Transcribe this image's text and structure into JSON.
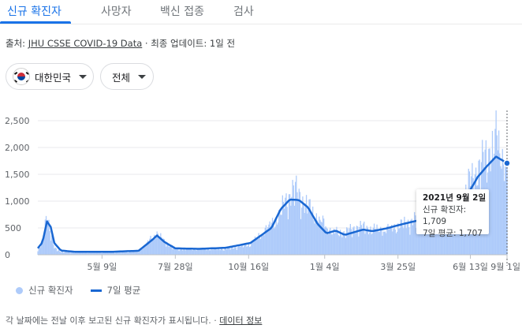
{
  "tabs": [
    {
      "label": "신규 확진자",
      "active": true
    },
    {
      "label": "사망자",
      "active": false
    },
    {
      "label": "백신 접종",
      "active": false
    },
    {
      "label": "검사",
      "active": false
    }
  ],
  "source": {
    "prefix": "출처: ",
    "link": "JHU CSSE COVID-19 Data",
    "suffix": " · 최종 업데이트: 1일 전"
  },
  "filters": {
    "region": "대한민국",
    "scope": "전체",
    "region_flag": "south-korea-flag-icon"
  },
  "legend": {
    "bars": "신규 확진자",
    "line": "7일 평균"
  },
  "tooltip": {
    "date": "2021년 9월 2일",
    "new_cases": "신규 확진자: 1,709",
    "avg": "7일 평균: 1,707"
  },
  "footnote": {
    "text": "각 날짜에는 전날 이후 보고된 신규 확진자가 표시됩니다. · ",
    "link": "데이터 정보"
  },
  "colors": {
    "accent": "#1a73e8",
    "bar": "#aecbfa",
    "line": "#1967d2"
  },
  "chart_data": {
    "type": "bar",
    "xlabel": "",
    "ylabel": "",
    "ylim": [
      0,
      2500
    ],
    "yticks": [
      0,
      500,
      1000,
      1500,
      2000,
      2500
    ],
    "ytick_labels": [
      "0",
      "500",
      "1,000",
      "1,500",
      "2,000",
      "2,500"
    ],
    "xtick_labels": [
      "5월 9일",
      "7월 28일",
      "10월 16일",
      "1월 4일",
      "3월 25일",
      "6월 13일",
      "9월 1일"
    ],
    "grid": true,
    "legend_placement": "bottom-left",
    "x_range": [
      "2020-02-28",
      "2021-09-02"
    ],
    "series": [
      {
        "name": "신규 확진자",
        "kind": "bar",
        "keypoints": [
          [
            0,
            80
          ],
          [
            5,
            200
          ],
          [
            10,
            850
          ],
          [
            13,
            480
          ],
          [
            18,
            120
          ],
          [
            25,
            60
          ],
          [
            40,
            40
          ],
          [
            80,
            45
          ],
          [
            110,
            60
          ],
          [
            125,
            330
          ],
          [
            130,
            400
          ],
          [
            138,
            250
          ],
          [
            150,
            110
          ],
          [
            175,
            100
          ],
          [
            205,
            110
          ],
          [
            232,
            200
          ],
          [
            262,
            700
          ],
          [
            270,
            1000
          ],
          [
            280,
            1240
          ],
          [
            290,
            1000
          ],
          [
            305,
            700
          ],
          [
            322,
            420
          ],
          [
            335,
            420
          ],
          [
            350,
            530
          ],
          [
            365,
            480
          ],
          [
            380,
            470
          ],
          [
            400,
            580
          ],
          [
            415,
            680
          ],
          [
            430,
            780
          ],
          [
            445,
            720
          ],
          [
            455,
            640
          ],
          [
            470,
            1320
          ],
          [
            480,
            1600
          ],
          [
            490,
            1850
          ],
          [
            500,
            2200
          ],
          [
            506,
            1900
          ],
          [
            510,
            1760
          ],
          [
            512,
            1709
          ]
        ]
      },
      {
        "name": "7일 평균",
        "kind": "line",
        "keypoints": [
          [
            0,
            120
          ],
          [
            5,
            230
          ],
          [
            10,
            620
          ],
          [
            14,
            520
          ],
          [
            18,
            220
          ],
          [
            25,
            80
          ],
          [
            40,
            55
          ],
          [
            80,
            55
          ],
          [
            110,
            75
          ],
          [
            125,
            280
          ],
          [
            130,
            360
          ],
          [
            138,
            240
          ],
          [
            150,
            120
          ],
          [
            175,
            110
          ],
          [
            205,
            130
          ],
          [
            232,
            220
          ],
          [
            255,
            500
          ],
          [
            265,
            850
          ],
          [
            275,
            1030
          ],
          [
            285,
            1020
          ],
          [
            295,
            880
          ],
          [
            305,
            580
          ],
          [
            315,
            400
          ],
          [
            325,
            450
          ],
          [
            335,
            370
          ],
          [
            345,
            420
          ],
          [
            355,
            470
          ],
          [
            365,
            440
          ],
          [
            380,
            490
          ],
          [
            400,
            580
          ],
          [
            415,
            640
          ],
          [
            430,
            680
          ],
          [
            445,
            640
          ],
          [
            455,
            600
          ],
          [
            462,
            860
          ],
          [
            470,
            1150
          ],
          [
            480,
            1450
          ],
          [
            490,
            1650
          ],
          [
            500,
            1830
          ],
          [
            507,
            1760
          ],
          [
            512,
            1707
          ]
        ]
      }
    ]
  }
}
